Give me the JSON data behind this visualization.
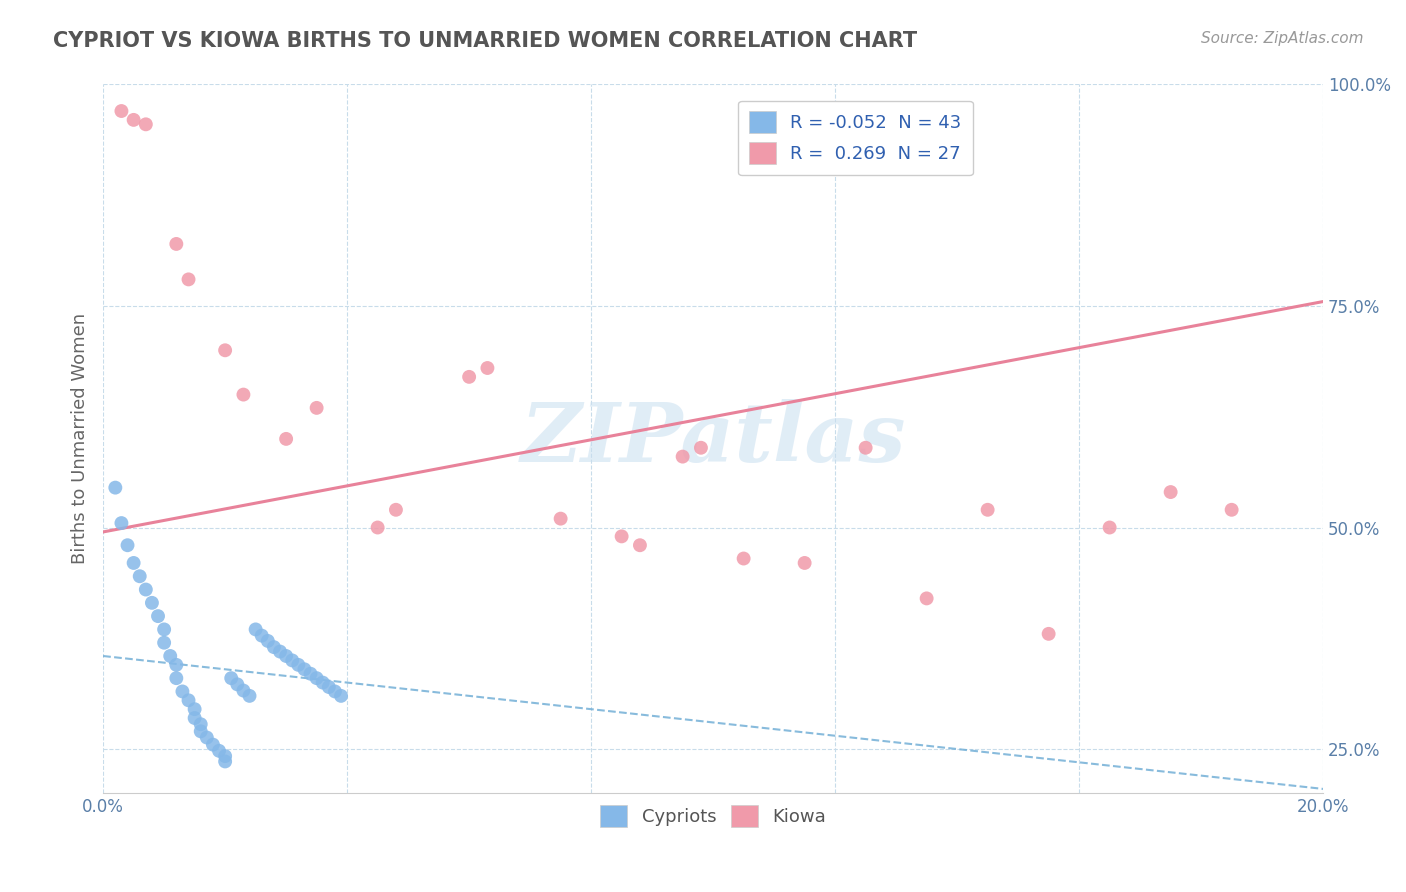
{
  "title": "CYPRIOT VS KIOWA BIRTHS TO UNMARRIED WOMEN CORRELATION CHART",
  "source": "Source: ZipAtlas.com",
  "ylabel": "Births to Unmarried Women",
  "xmin": 0.0,
  "xmax": 0.2,
  "ymin": 0.2,
  "ymax": 1.0,
  "x_ticks": [
    0.0,
    0.04,
    0.08,
    0.12,
    0.16,
    0.2
  ],
  "x_tick_labels": [
    "0.0%",
    "",
    "",
    "",
    "",
    "20.0%"
  ],
  "y_ticks": [
    0.25,
    0.5,
    0.75,
    1.0
  ],
  "y_tick_labels": [
    "25.0%",
    "50.0%",
    "75.0%",
    "100.0%"
  ],
  "cypriot_color": "#85b8e8",
  "kiowa_color": "#f09aaa",
  "cypriot_line_color": "#6aaad4",
  "kiowa_line_color": "#e8829a",
  "cypriot_R": -0.052,
  "cypriot_N": 43,
  "kiowa_R": 0.269,
  "kiowa_N": 27,
  "watermark": "ZIPatlas",
  "watermark_color": "#c8dff0",
  "cypriot_x": [
    0.002,
    0.003,
    0.004,
    0.005,
    0.006,
    0.007,
    0.008,
    0.009,
    0.01,
    0.01,
    0.011,
    0.012,
    0.012,
    0.013,
    0.014,
    0.015,
    0.015,
    0.016,
    0.016,
    0.017,
    0.018,
    0.019,
    0.02,
    0.02,
    0.021,
    0.022,
    0.023,
    0.024,
    0.025,
    0.026,
    0.027,
    0.028,
    0.029,
    0.03,
    0.031,
    0.032,
    0.033,
    0.034,
    0.035,
    0.036,
    0.037,
    0.038,
    0.039
  ],
  "cypriot_y": [
    0.545,
    0.505,
    0.48,
    0.46,
    0.445,
    0.43,
    0.415,
    0.4,
    0.385,
    0.37,
    0.355,
    0.345,
    0.33,
    0.315,
    0.305,
    0.295,
    0.285,
    0.278,
    0.27,
    0.263,
    0.255,
    0.248,
    0.242,
    0.236,
    0.33,
    0.323,
    0.316,
    0.31,
    0.385,
    0.378,
    0.372,
    0.365,
    0.36,
    0.355,
    0.35,
    0.345,
    0.34,
    0.335,
    0.33,
    0.325,
    0.32,
    0.315,
    0.31
  ],
  "kiowa_x": [
    0.003,
    0.005,
    0.007,
    0.012,
    0.014,
    0.02,
    0.023,
    0.03,
    0.035,
    0.045,
    0.048,
    0.06,
    0.063,
    0.075,
    0.085,
    0.088,
    0.095,
    0.098,
    0.105,
    0.115,
    0.125,
    0.135,
    0.145,
    0.155,
    0.165,
    0.175,
    0.185
  ],
  "kiowa_y": [
    0.97,
    0.96,
    0.955,
    0.82,
    0.78,
    0.7,
    0.65,
    0.6,
    0.635,
    0.5,
    0.52,
    0.67,
    0.68,
    0.51,
    0.49,
    0.48,
    0.58,
    0.59,
    0.465,
    0.46,
    0.59,
    0.42,
    0.52,
    0.38,
    0.5,
    0.54,
    0.52
  ],
  "cypriot_trend_x": [
    0.0,
    0.2
  ],
  "cypriot_trend_y": [
    0.355,
    0.205
  ],
  "kiowa_trend_x": [
    0.0,
    0.2
  ],
  "kiowa_trend_y": [
    0.495,
    0.755
  ]
}
